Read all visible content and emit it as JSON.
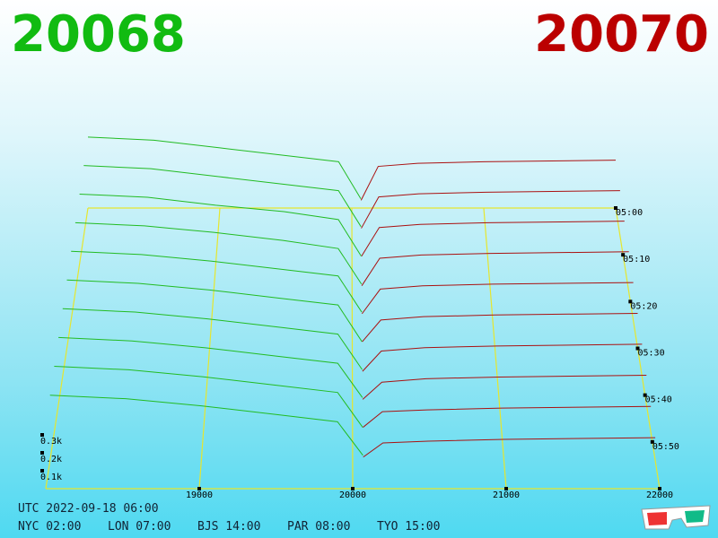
{
  "header": {
    "bid": "20068",
    "ask": "20070"
  },
  "chart_data": {
    "type": "depth-surface",
    "xlim": [
      18000,
      22000
    ],
    "xticks": [
      19000,
      20000,
      21000,
      22000
    ],
    "tlim": [
      0,
      60
    ],
    "tticks": [
      {
        "value": 0,
        "label": "05:00"
      },
      {
        "value": 10,
        "label": "05:10"
      },
      {
        "value": 20,
        "label": "05:20"
      },
      {
        "value": 30,
        "label": "05:30"
      },
      {
        "value": 40,
        "label": "05:40"
      },
      {
        "value": 50,
        "label": "05:50"
      }
    ],
    "zticks": [
      {
        "value": 0.1,
        "label": "0.1k"
      },
      {
        "value": 0.2,
        "label": "0.2k"
      },
      {
        "value": 0.3,
        "label": "0.3k"
      }
    ],
    "row_times": [
      0,
      6,
      12,
      18,
      24,
      30,
      36,
      42,
      48,
      54
    ],
    "grid_color": "#e6e62e",
    "bids": {
      "color": "#22bb22",
      "prices": [
        18000,
        18500,
        19000,
        19500,
        19900,
        20068
      ],
      "rows": [
        [
          0.46,
          0.44,
          0.39,
          0.34,
          0.3,
          0.06
        ],
        [
          0.45,
          0.43,
          0.38,
          0.33,
          0.29,
          0.06
        ],
        [
          0.44,
          0.42,
          0.37,
          0.33,
          0.28,
          0.05
        ],
        [
          0.43,
          0.41,
          0.37,
          0.32,
          0.27,
          0.05
        ],
        [
          0.42,
          0.4,
          0.36,
          0.31,
          0.27,
          0.05
        ],
        [
          0.41,
          0.39,
          0.35,
          0.3,
          0.26,
          0.04
        ],
        [
          0.4,
          0.38,
          0.34,
          0.29,
          0.25,
          0.04
        ],
        [
          0.39,
          0.37,
          0.33,
          0.28,
          0.24,
          0.04
        ],
        [
          0.38,
          0.36,
          0.32,
          0.27,
          0.23,
          0.03
        ],
        [
          0.37,
          0.35,
          0.31,
          0.26,
          0.22,
          0.03
        ]
      ]
    },
    "asks": {
      "color": "#aa1111",
      "prices": [
        20070,
        20200,
        20500,
        21000,
        22000
      ],
      "rows": [
        [
          0.05,
          0.27,
          0.29,
          0.3,
          0.31
        ],
        [
          0.05,
          0.25,
          0.27,
          0.28,
          0.29
        ],
        [
          0.05,
          0.23,
          0.25,
          0.26,
          0.27
        ],
        [
          0.04,
          0.21,
          0.23,
          0.24,
          0.25
        ],
        [
          0.04,
          0.19,
          0.21,
          0.22,
          0.23
        ],
        [
          0.04,
          0.17,
          0.19,
          0.2,
          0.21
        ],
        [
          0.03,
          0.15,
          0.17,
          0.18,
          0.19
        ],
        [
          0.03,
          0.13,
          0.15,
          0.16,
          0.17
        ],
        [
          0.03,
          0.12,
          0.13,
          0.14,
          0.15
        ],
        [
          0.02,
          0.1,
          0.11,
          0.12,
          0.13
        ]
      ]
    }
  },
  "clock": {
    "utc": "UTC 2022-09-18 06:00",
    "cities": [
      "NYC 02:00",
      "LON 07:00",
      "BJS 14:00",
      "PAR 08:00",
      "TYO 15:00"
    ]
  }
}
